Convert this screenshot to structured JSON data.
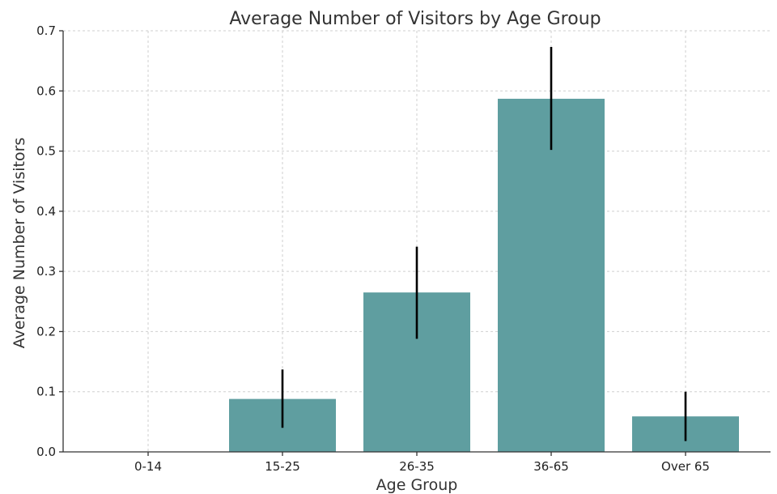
{
  "chart_data": {
    "type": "bar",
    "title": "Average Number of Visitors by Age Group",
    "xlabel": "Age Group",
    "ylabel": "Average Number of Visitors",
    "categories": [
      "0-14",
      "15-25",
      "26-35",
      "36-65",
      "Over 65"
    ],
    "values": [
      0.0,
      0.088,
      0.265,
      0.587,
      0.059
    ],
    "error_low": [
      0.0,
      0.04,
      0.188,
      0.502,
      0.018
    ],
    "error_high": [
      0.0,
      0.137,
      0.341,
      0.673,
      0.1
    ],
    "ylim": [
      0,
      0.7
    ],
    "yticks": [
      "0.0",
      "0.1",
      "0.2",
      "0.3",
      "0.4",
      "0.5",
      "0.6",
      "0.7"
    ],
    "grid": true,
    "bar_color": "#5f9ea0",
    "error_color": "#000000"
  }
}
